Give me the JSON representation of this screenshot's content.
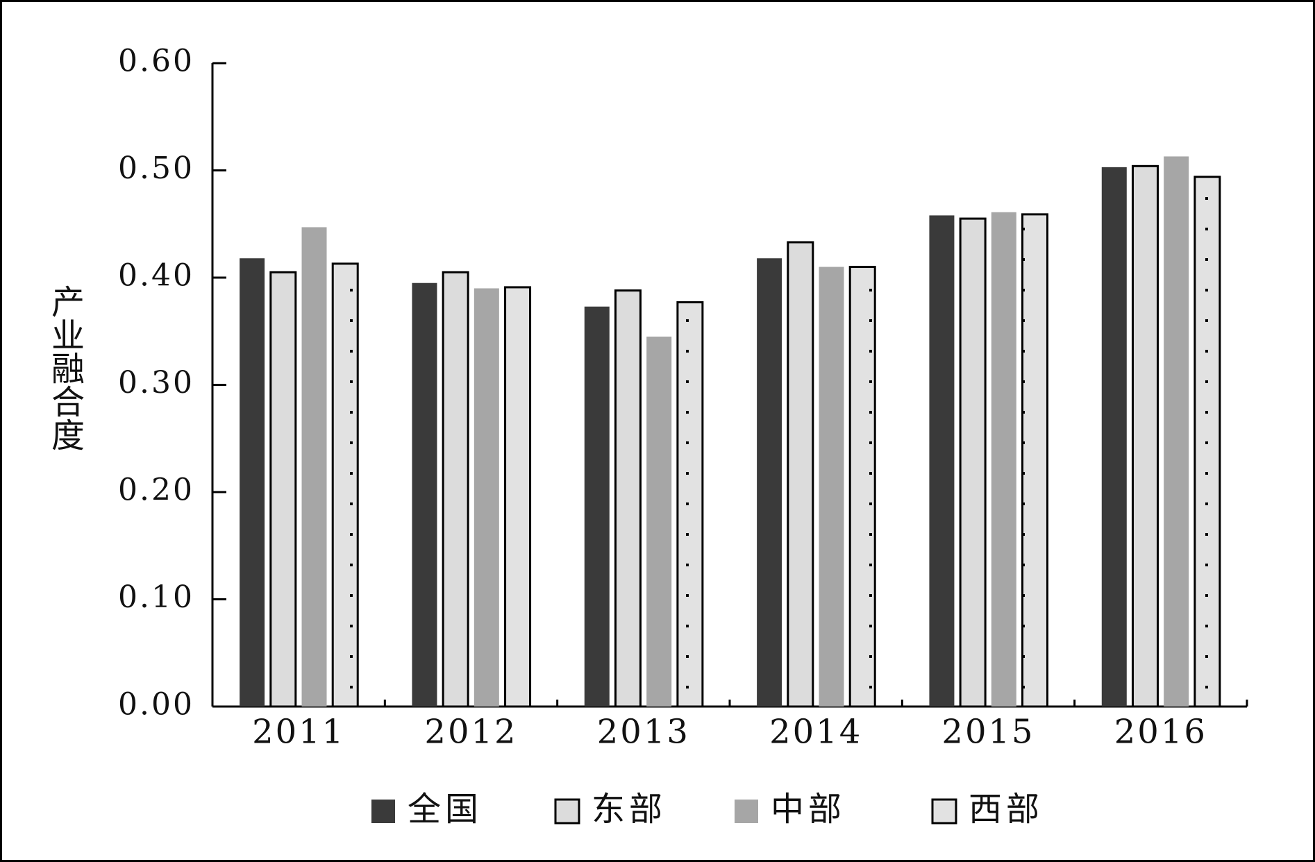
{
  "chart_data": {
    "type": "bar",
    "y_label": "产业融合度",
    "categories": [
      "2011",
      "2012",
      "2013",
      "2014",
      "2015",
      "2016"
    ],
    "series": [
      {
        "name": "全国",
        "color": "#3a3a3a",
        "values": [
          0.418,
          0.395,
          0.373,
          0.418,
          0.458,
          0.503
        ]
      },
      {
        "name": "东部",
        "color": "#dcdcdc",
        "edgecolor": "#000000",
        "values": [
          0.405,
          0.405,
          0.388,
          0.433,
          0.455,
          0.504
        ]
      },
      {
        "name": "中部",
        "color": "#a6a6a6",
        "values": [
          0.447,
          0.39,
          0.345,
          0.41,
          0.461,
          0.513
        ]
      },
      {
        "name": "西部",
        "color": "#e2e2e2",
        "edgecolor": "#000000",
        "pattern": "dots",
        "values": [
          0.413,
          0.391,
          0.377,
          0.41,
          0.459,
          0.494
        ]
      }
    ],
    "ylim": [
      0,
      0.6
    ],
    "yticks": [
      {
        "value": 0,
        "label": "0.00"
      },
      {
        "value": 0.1,
        "label": "0.10"
      },
      {
        "value": 0.2,
        "label": "0.20"
      },
      {
        "value": 0.3,
        "label": "0.30"
      },
      {
        "value": 0.4,
        "label": "0.40"
      },
      {
        "value": 0.5,
        "label": "0.50"
      },
      {
        "value": 0.6,
        "label": "0.60"
      }
    ],
    "legend": "bottom"
  }
}
